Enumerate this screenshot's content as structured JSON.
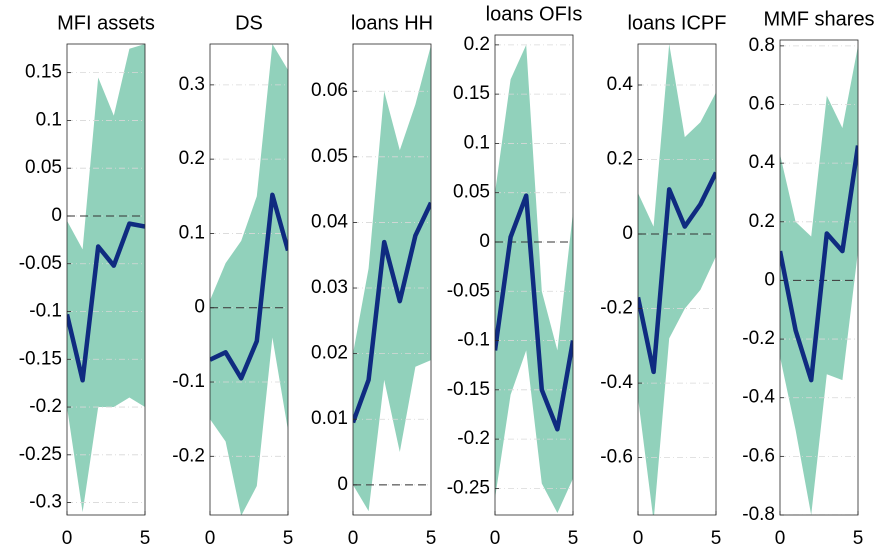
{
  "chart_data": [
    {
      "type": "band-line",
      "title": "MFI assets",
      "x": [
        0,
        1,
        2,
        3,
        4,
        5
      ],
      "values": [
        -0.103,
        -0.172,
        -0.032,
        -0.052,
        -0.008,
        -0.011
      ],
      "upper": [
        -0.005,
        -0.035,
        0.145,
        0.105,
        0.175,
        0.18
      ],
      "lower": [
        -0.2,
        -0.31,
        -0.2,
        -0.2,
        -0.19,
        -0.2
      ],
      "xlim": [
        0,
        5
      ],
      "xticks": [
        0,
        5
      ],
      "ylim": [
        -0.313,
        0.18
      ],
      "yticks": [
        -0.3,
        -0.25,
        -0.2,
        -0.15,
        -0.1,
        -0.05,
        0,
        0.05,
        0.1,
        0.15
      ],
      "reference_line": 0
    },
    {
      "type": "band-line",
      "title": "DS",
      "x": [
        0,
        1,
        2,
        3,
        4,
        5
      ],
      "values": [
        -0.07,
        -0.06,
        -0.095,
        -0.045,
        0.152,
        0.077
      ],
      "upper": [
        0.01,
        0.06,
        0.09,
        0.15,
        0.355,
        0.32
      ],
      "lower": [
        -0.15,
        -0.18,
        -0.28,
        -0.24,
        -0.04,
        -0.165
      ],
      "xlim": [
        0,
        5
      ],
      "xticks": [
        0,
        5
      ],
      "ylim": [
        -0.279,
        0.355
      ],
      "yticks": [
        -0.2,
        -0.1,
        0,
        0.1,
        0.2,
        0.3
      ],
      "reference_line": 0
    },
    {
      "type": "band-line",
      "title": "loans HH",
      "x": [
        0,
        1,
        2,
        3,
        4,
        5
      ],
      "values": [
        0.0095,
        0.016,
        0.037,
        0.028,
        0.038,
        0.043
      ],
      "upper": [
        0.02,
        0.033,
        0.06,
        0.051,
        0.058,
        0.067
      ],
      "lower": [
        0.0,
        -0.004,
        0.016,
        0.005,
        0.018,
        0.019
      ],
      "xlim": [
        0,
        5
      ],
      "xticks": [
        0,
        5
      ],
      "ylim": [
        -0.0046,
        0.0672
      ],
      "yticks": [
        0,
        0.01,
        0.02,
        0.03,
        0.04,
        0.05,
        0.06
      ],
      "reference_line": 0
    },
    {
      "type": "band-line",
      "title": "loans OFIs",
      "x": [
        0,
        1,
        2,
        3,
        4,
        5
      ],
      "values": [
        -0.11,
        0.005,
        0.047,
        -0.15,
        -0.19,
        -0.1
      ],
      "upper": [
        0.05,
        0.165,
        0.2,
        -0.05,
        -0.11,
        0.03
      ],
      "lower": [
        -0.26,
        -0.155,
        -0.11,
        -0.245,
        -0.275,
        -0.24
      ],
      "xlim": [
        0,
        5
      ],
      "xticks": [
        0,
        5
      ],
      "ylim": [
        -0.277,
        0.21
      ],
      "yticks": [
        -0.25,
        -0.2,
        -0.15,
        -0.1,
        -0.05,
        0,
        0.05,
        0.1,
        0.15,
        0.2
      ],
      "reference_line": 0
    },
    {
      "type": "band-line",
      "title": "loans ICPF",
      "x": [
        0,
        1,
        2,
        3,
        4,
        5
      ],
      "values": [
        -0.17,
        -0.37,
        0.12,
        0.02,
        0.08,
        0.165
      ],
      "upper": [
        0.11,
        0.02,
        0.51,
        0.26,
        0.3,
        0.38
      ],
      "lower": [
        -0.44,
        -0.77,
        -0.28,
        -0.2,
        -0.15,
        -0.06
      ],
      "xlim": [
        0,
        5
      ],
      "xticks": [
        0,
        5
      ],
      "ylim": [
        -0.754,
        0.51
      ],
      "yticks": [
        -0.6,
        -0.4,
        -0.2,
        0,
        0.2,
        0.4
      ],
      "reference_line": 0
    },
    {
      "type": "band-line",
      "title": "MMF shares",
      "x": [
        0,
        1,
        2,
        3,
        4,
        5
      ],
      "values": [
        0.1,
        -0.17,
        -0.34,
        0.16,
        0.1,
        0.46
      ],
      "upper": [
        0.43,
        0.2,
        0.15,
        0.63,
        0.52,
        0.8
      ],
      "lower": [
        -0.26,
        -0.51,
        -0.8,
        -0.32,
        -0.34,
        0.1
      ],
      "xlim": [
        0,
        5
      ],
      "xticks": [
        0,
        5
      ],
      "ylim": [
        -0.8,
        0.82
      ],
      "yticks": [
        -0.8,
        -0.6,
        -0.4,
        -0.2,
        0,
        0.2,
        0.4,
        0.6,
        0.8
      ],
      "reference_line": 0
    }
  ],
  "style": {
    "line_color": "#0f2b80",
    "band_color": "#91d1bb",
    "grid": true
  }
}
